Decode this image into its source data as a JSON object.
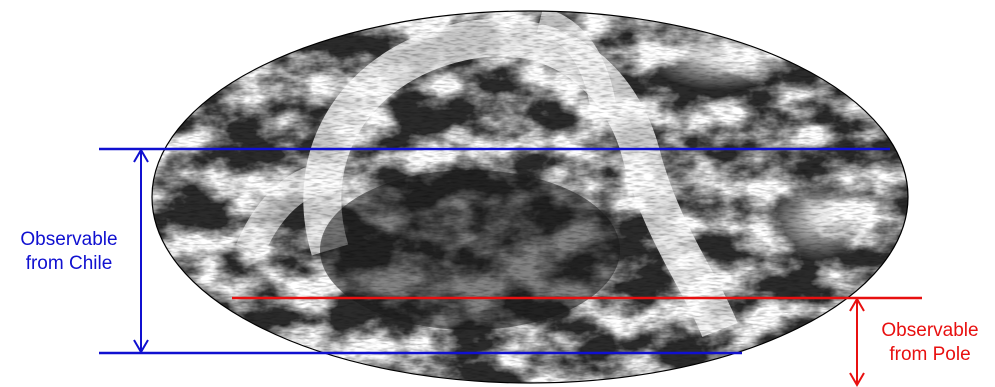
{
  "colors": {
    "chile": "#1010d0",
    "pole": "#e81010",
    "map_dark": "#2b2b2b",
    "map_light": "#ffffff",
    "background": "#ffffff"
  },
  "labels": {
    "chile": {
      "line1": "Observable",
      "line2": "from Chile"
    },
    "pole": {
      "line1": "Observable",
      "line2": "from Pole"
    }
  },
  "map": {
    "projection": "mollweide-style full-sky ellipse",
    "appearance": "grayscale full-sky dust map"
  }
}
